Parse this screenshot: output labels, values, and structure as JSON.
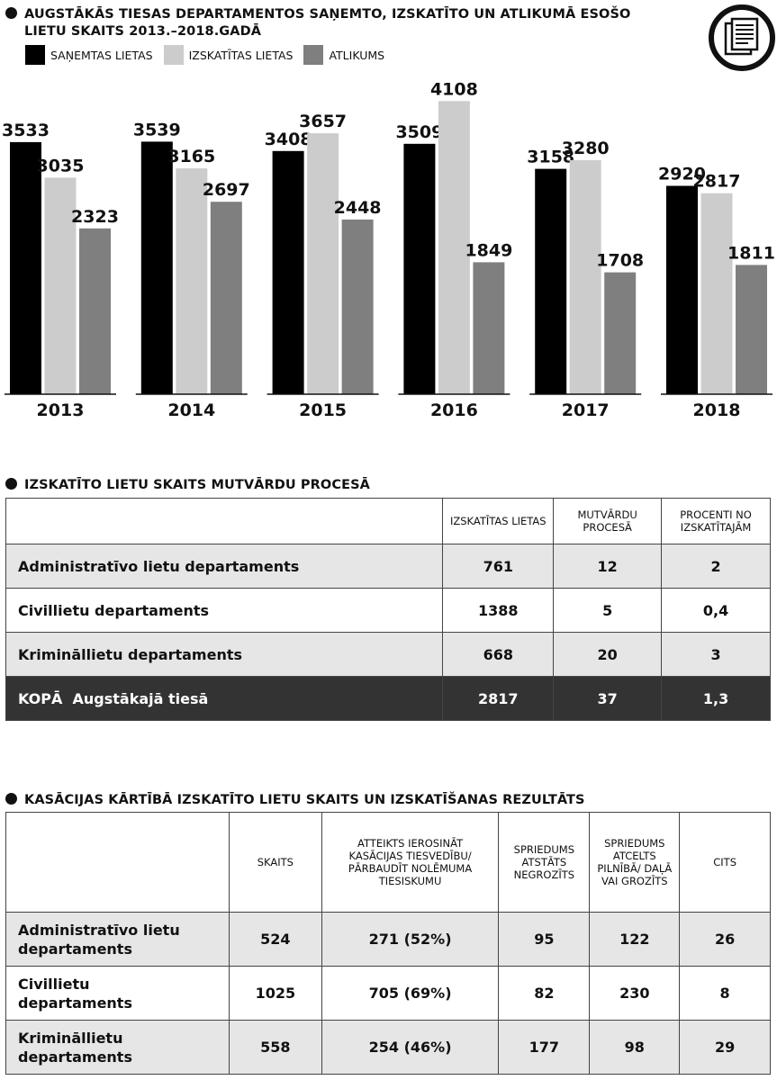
{
  "chart_heading": "AUGSTĀKĀS TIESAS DEPARTAMENTOS SAŅEMTO, IZSKATĪTO UN ATLIKUMĀ ESOŠO",
  "chart_heading_2": "LIETU SKAITS 2013.–2018.GADĀ",
  "logo_icon": "document-icon",
  "chart_data": {
    "type": "bar",
    "categories": [
      "2013",
      "2014",
      "2015",
      "2016",
      "2017",
      "2018"
    ],
    "series": [
      {
        "name": "SAŅEMTAS LIETAS",
        "color": "#000000",
        "values": [
          3533,
          3539,
          3408,
          3509,
          3158,
          2920
        ]
      },
      {
        "name": "IZSKATĪTAS LIETAS",
        "color": "#cccccc",
        "values": [
          3035,
          3165,
          3657,
          4108,
          3280,
          2817
        ]
      },
      {
        "name": "ATLIKUMS",
        "color": "#7f7f7f",
        "values": [
          2323,
          2697,
          2448,
          1849,
          1708,
          1811
        ]
      }
    ],
    "ylim": [
      0,
      4200
    ],
    "grid": false,
    "legend": "top-left"
  },
  "table1": {
    "heading": "IZSKATĪTO LIETU SKAITS MUTVĀRDU PROCESĀ",
    "columns": [
      "",
      "IZSKATĪTAS LIETAS",
      "MUTVĀRDU PROCESĀ",
      "PROCENTI NO IZSKATĪTAJĀM"
    ],
    "rows": [
      [
        "Administratīvo lietu departaments",
        "761",
        "12",
        "2"
      ],
      [
        "Civillietu departaments",
        "1388",
        "5",
        "0,4"
      ],
      [
        "Krimināllietu departaments",
        "668",
        "20",
        "3"
      ]
    ],
    "total": [
      "KOPĀ  Augstākajā tiesā",
      "2817",
      "37",
      "1,3"
    ]
  },
  "table2": {
    "heading": "KASĀCIJAS KĀRTĪBĀ IZSKATĪTO LIETU SKAITS UN IZSKATĪŠANAS REZULTĀTS",
    "columns": [
      "",
      "SKAITS",
      "ATTEIKTS IEROSINĀT KASĀCIJAS TIESVEDĪBU/ PĀRBAUDĪT NOLĒMUMA TIESISKUMU",
      "SPRIEDUMS ATSTĀTS NEGROZĪTS",
      "SPRIEDUMS ATCELTS PILNĪBĀ/ DAĻĀ VAI GROZĪTS",
      "CITS"
    ],
    "rows": [
      [
        "Administratīvo lietu departaments",
        "524",
        "271 (52%)",
        "95",
        "122",
        "26"
      ],
      [
        "Civillietu departaments",
        "1025",
        "705 (69%)",
        "82",
        "230",
        "8"
      ],
      [
        "Krimināllietu departaments",
        "558",
        "254 (46%)",
        "177",
        "98",
        "29"
      ]
    ]
  }
}
